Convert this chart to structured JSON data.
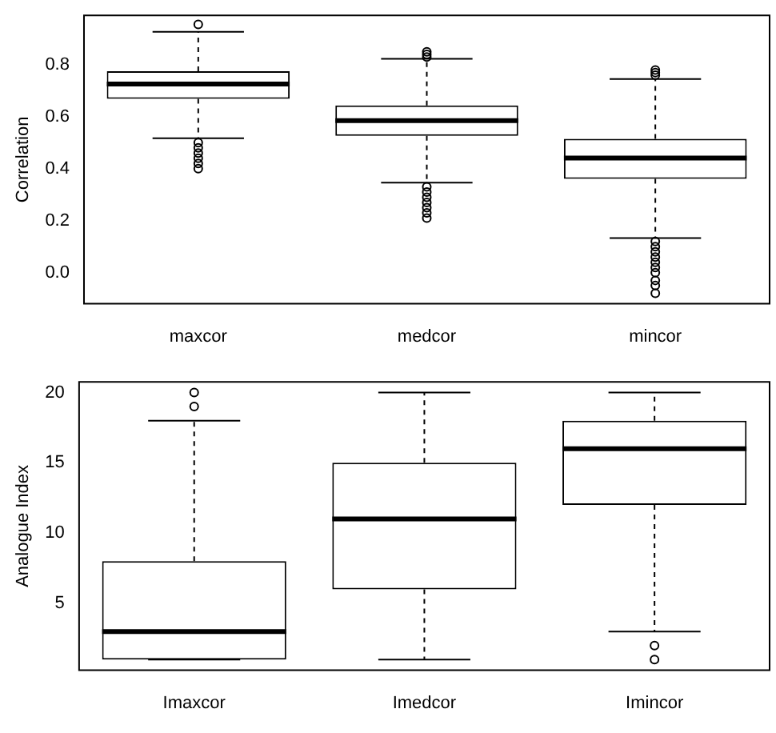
{
  "chart_data": [
    {
      "type": "box",
      "ylabel": "Correlation",
      "categories": [
        "maxcor",
        "medcor",
        "mincor"
      ],
      "ylim": [
        -0.12,
        0.99
      ],
      "yticks": [
        {
          "value": 0,
          "label": "0.0"
        },
        0.2,
        0.4,
        0.6,
        0.8
      ],
      "grid": false,
      "legend": false,
      "boxes": [
        {
          "low": 0.517,
          "q1": 0.669,
          "median": 0.726,
          "q3": 0.775,
          "high": 0.927,
          "outliers": [
            0.955,
            0.5,
            0.48,
            0.46,
            0.44,
            0.42,
            0.4
          ]
        },
        {
          "low": 0.346,
          "q1": 0.526,
          "median": 0.585,
          "q3": 0.643,
          "high": 0.823,
          "outliers": [
            0.85,
            0.84,
            0.83,
            0.33,
            0.31,
            0.29,
            0.27,
            0.25,
            0.23,
            0.21
          ]
        },
        {
          "low": 0.133,
          "q1": 0.361,
          "median": 0.441,
          "q3": 0.515,
          "high": 0.745,
          "outliers": [
            0.78,
            0.77,
            0.76,
            0.12,
            0.1,
            0.08,
            0.06,
            0.04,
            0.02,
            0,
            -0.03,
            -0.05,
            -0.08
          ]
        }
      ]
    },
    {
      "type": "box",
      "ylabel": "Analogue Index",
      "categories": [
        "Imaxcor",
        "Imedcor",
        "Imincor"
      ],
      "ylim": [
        0.24,
        20.76
      ],
      "yticks": [
        5,
        10,
        15,
        20
      ],
      "grid": false,
      "legend": false,
      "boxes": [
        {
          "low": 1,
          "q1": 1,
          "median": 3,
          "q3": 8,
          "high": 18,
          "outliers": [
            19,
            20
          ]
        },
        {
          "low": 1,
          "q1": 6,
          "median": 11,
          "q3": 15,
          "high": 20
        },
        {
          "low": 3,
          "q1": 12,
          "median": 16,
          "q3": 18,
          "high": 20,
          "outliers": [
            1,
            2
          ]
        }
      ]
    }
  ]
}
